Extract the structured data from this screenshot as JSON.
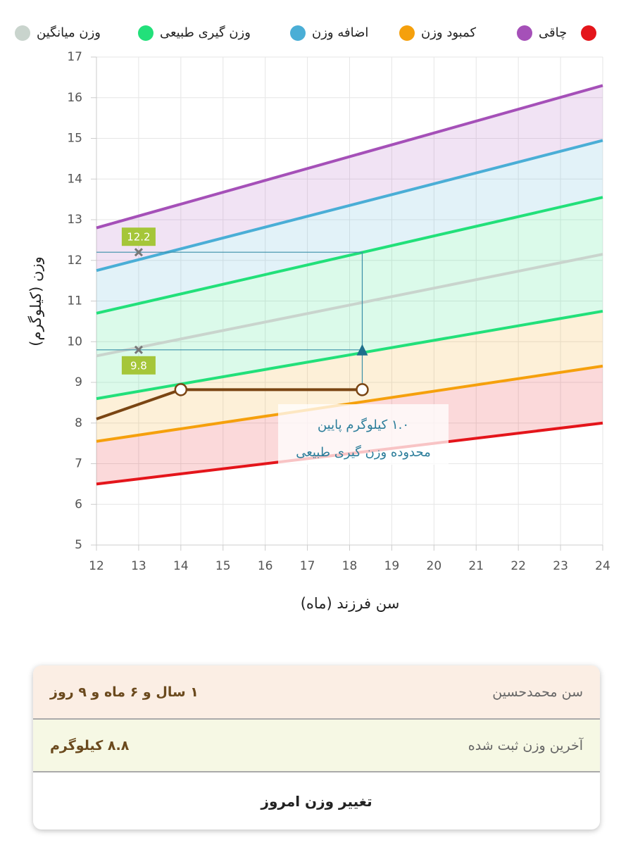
{
  "chart_data": {
    "type": "line",
    "x": [
      12,
      24
    ],
    "series": [
      {
        "name": "وزن میانگین",
        "color": "#c9d4cd",
        "values": [
          9.65,
          12.15
        ]
      },
      {
        "name": "وزن گیری طبیعی",
        "color": "#22e07a",
        "values": [
          10.7,
          13.55
        ],
        "lower_values": [
          8.6,
          10.75
        ]
      },
      {
        "name": "اضافه وزن",
        "color": "#4aaed6",
        "values": [
          11.75,
          14.95
        ]
      },
      {
        "name": "کمبود وزن",
        "color": "#f5a00c",
        "values": [
          7.55,
          9.4
        ]
      },
      {
        "name": "چاقی",
        "color": "#a550b8",
        "values": [
          12.8,
          16.3
        ]
      },
      {
        "color": "#e4151b",
        "values": [
          6.5,
          8.0
        ]
      }
    ],
    "child_series": {
      "color": "#7a4513",
      "x": [
        12,
        14,
        18.3
      ],
      "values": [
        8.1,
        8.82,
        8.82
      ]
    },
    "range_markers": {
      "x": 13,
      "values": [
        12.2,
        9.8
      ],
      "color": "#a5c639"
    },
    "annotation": [
      "۱.۰ کیلوگرم پایین",
      "محدوده وزن گیری طبیعی"
    ],
    "xlabel": "سن فرزند (ماه)",
    "ylabel": "وزن (کیلوگرم)",
    "xlim": [
      12,
      24
    ],
    "xticks": [
      12,
      13,
      14,
      15,
      16,
      17,
      18,
      19,
      20,
      21,
      22,
      23,
      24
    ],
    "ylim": [
      5,
      17
    ],
    "yticks": [
      5,
      6,
      7,
      8,
      9,
      10,
      11,
      12,
      13,
      14,
      15,
      16,
      17
    ],
    "grid": true
  },
  "info": {
    "rows": [
      {
        "label": "سن محمدحسین",
        "value": "۱ سال و ۶ ماه و ۹ روز"
      },
      {
        "label": "آخرین وزن ثبت شده",
        "value": "۸.۸ کیلوگرم"
      }
    ],
    "button": "تغییر وزن امروز"
  }
}
